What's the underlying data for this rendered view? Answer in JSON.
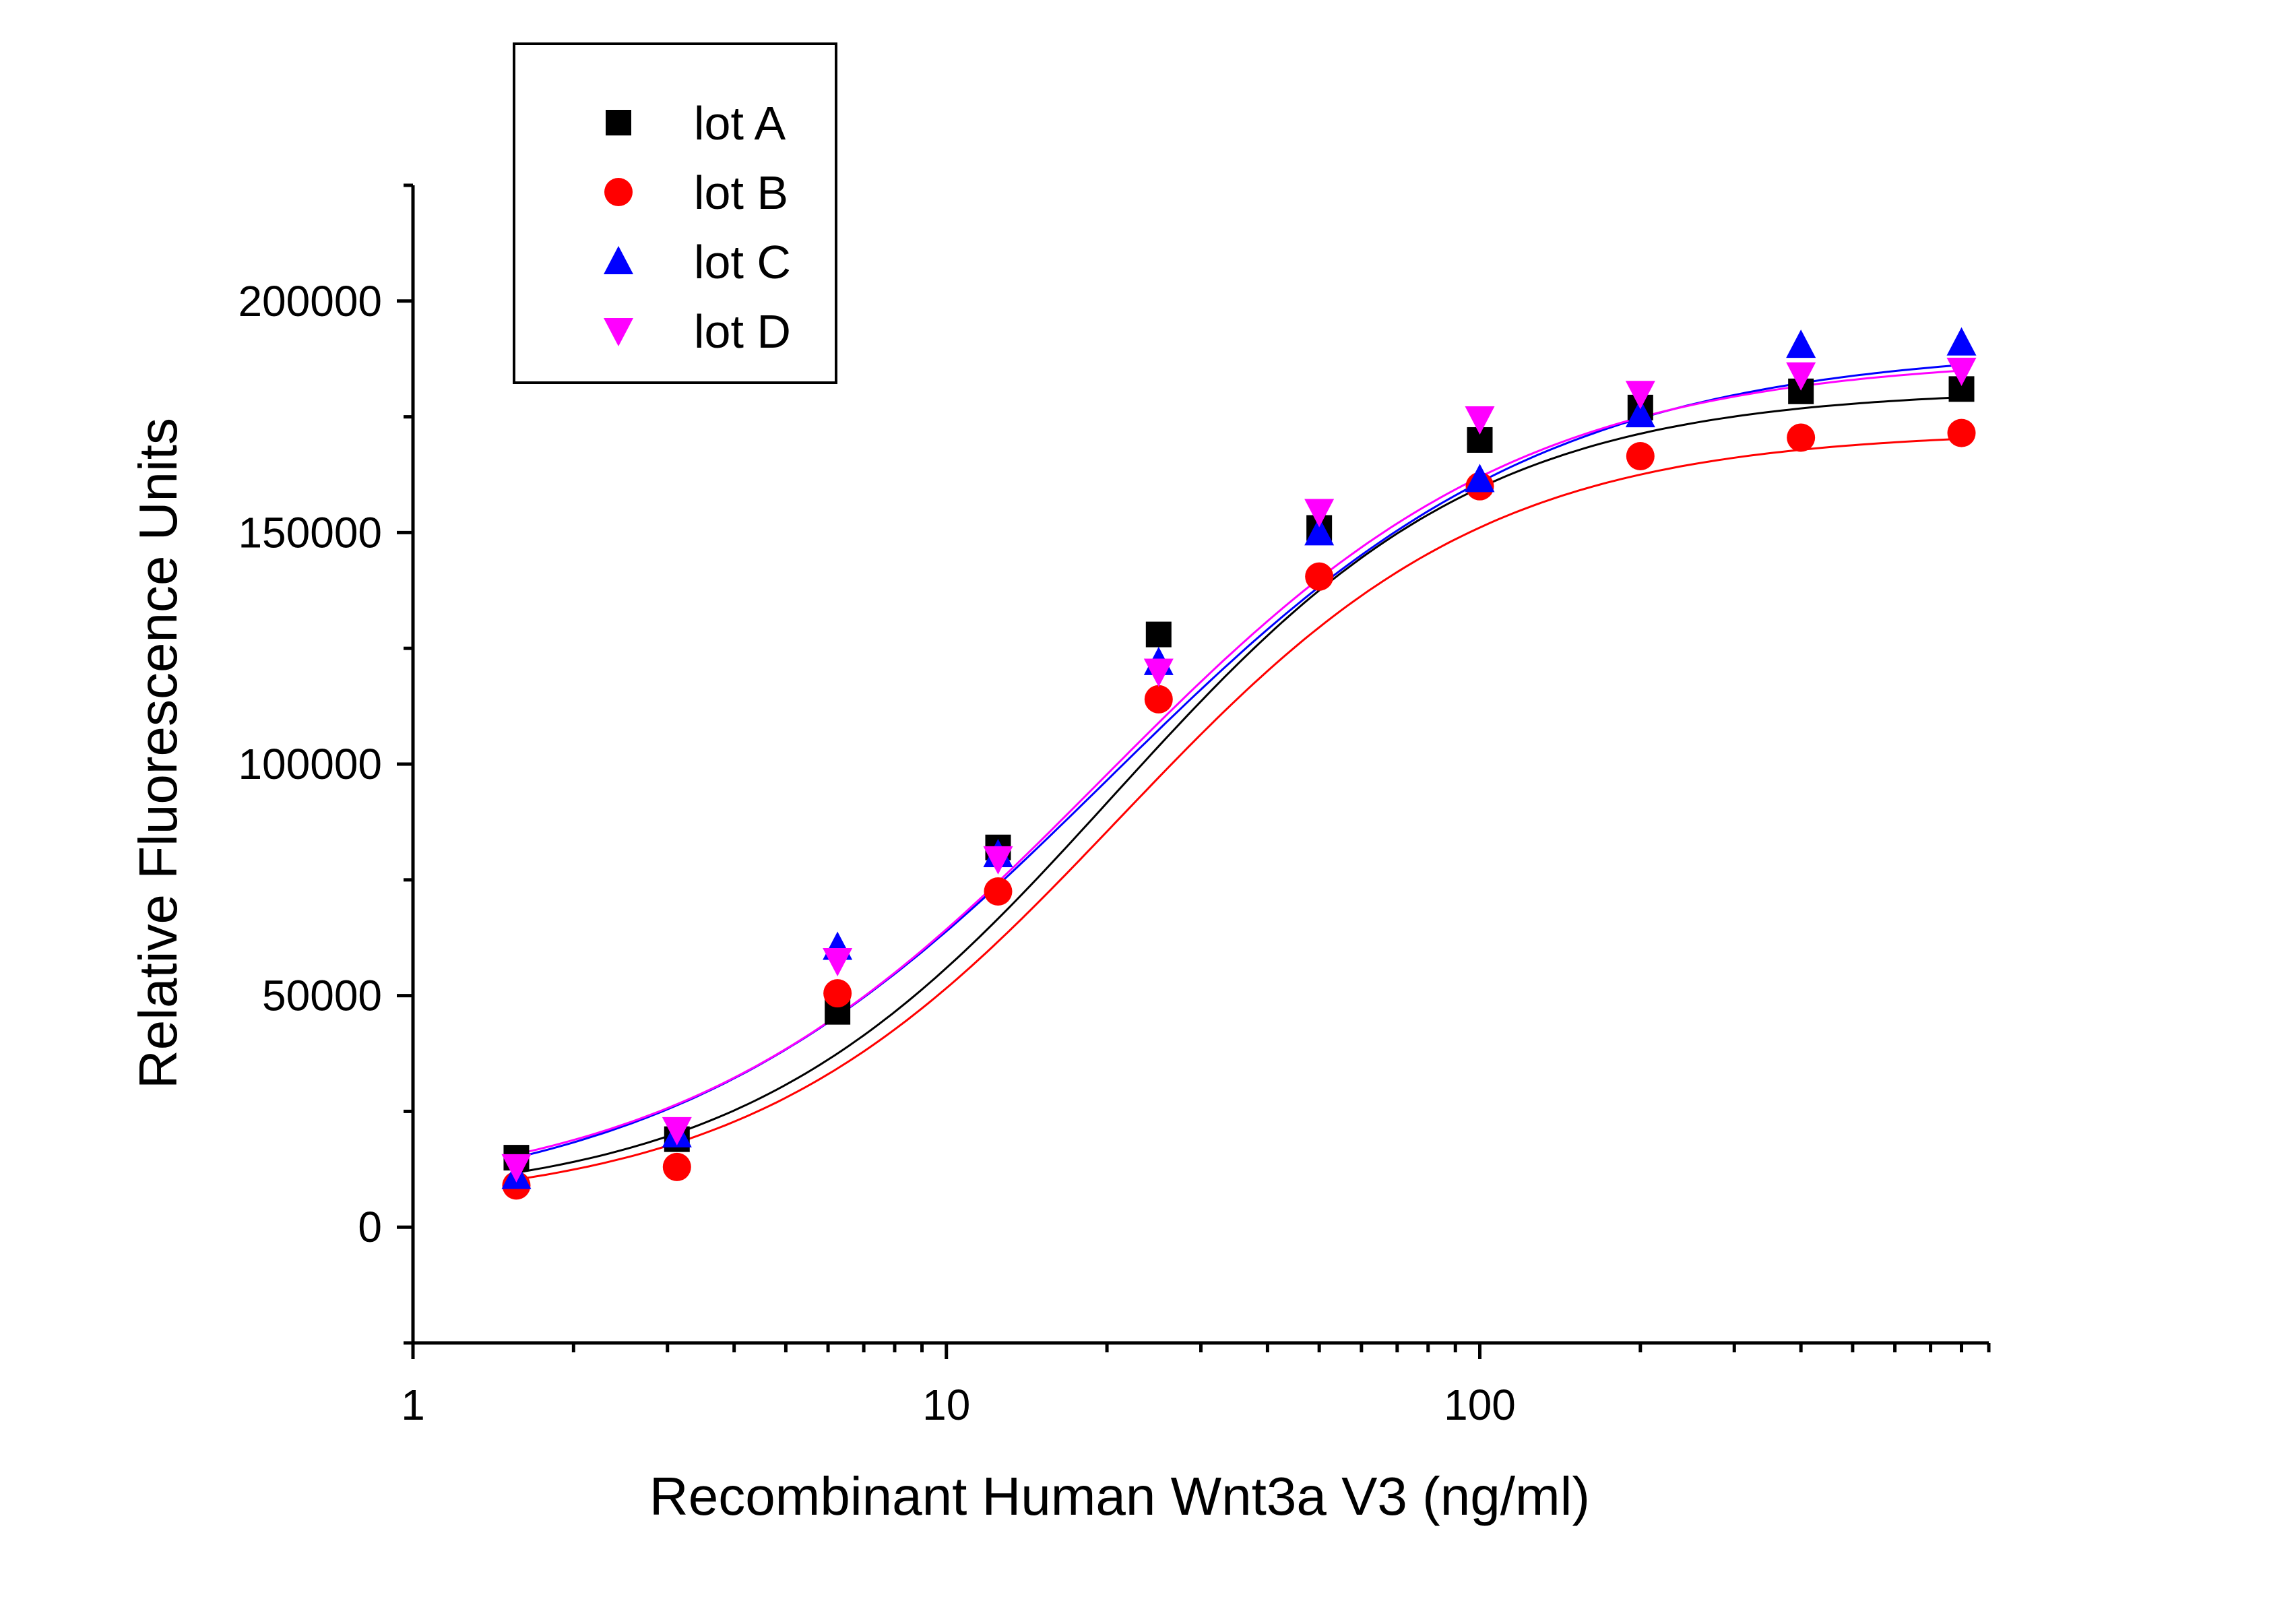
{
  "chart_data": {
    "type": "scatter",
    "title": "",
    "xlabel": "Recombinant Human Wnt3a V3 (ng/ml)",
    "ylabel": "Relative Fluorescence Units",
    "xscale": "log",
    "xlim": [
      1,
      900
    ],
    "ylim": [
      -25000,
      225000
    ],
    "xticks": [
      1,
      10,
      100
    ],
    "xtick_labels": [
      "1",
      "10",
      "100"
    ],
    "yticks": [
      0,
      50000,
      100000,
      150000,
      200000
    ],
    "ytick_labels": [
      "0",
      "50000",
      "100000",
      "150000",
      "200000"
    ],
    "grid": false,
    "legend_position": "top-left",
    "x": [
      1.5625,
      3.125,
      6.25,
      12.5,
      25,
      50,
      100,
      200,
      400,
      800
    ],
    "series": [
      {
        "name": "lot A",
        "color": "#000000",
        "marker": "square",
        "values": [
          15000,
          19000,
          46500,
          82000,
          128000,
          151000,
          170000,
          177000,
          180500,
          181000
        ],
        "fit": {
          "bottom": 5000,
          "top": 181000,
          "ec50": 20.5,
          "hill": 1.25
        }
      },
      {
        "name": "lot B",
        "color": "#ff0000",
        "marker": "circle",
        "values": [
          9000,
          13000,
          50500,
          72500,
          114000,
          140500,
          160000,
          166500,
          170500,
          171500
        ],
        "fit": {
          "bottom": 4000,
          "top": 172000,
          "ec50": 21.0,
          "hill": 1.25
        }
      },
      {
        "name": "lot C",
        "color": "#0000ff",
        "marker": "triangle-up",
        "values": [
          11000,
          20000,
          60500,
          80500,
          122000,
          150000,
          161500,
          175500,
          190500,
          191000
        ],
        "fit": {
          "bottom": 3000,
          "top": 190000,
          "ec50": 20.0,
          "hill": 1.05
        }
      },
      {
        "name": "lot D",
        "color": "#ff00ff",
        "marker": "triangle-down",
        "values": [
          13000,
          21000,
          57500,
          79500,
          120000,
          154500,
          174500,
          180000,
          184000,
          185000
        ],
        "fit": {
          "bottom": 5000,
          "top": 188000,
          "ec50": 19.5,
          "hill": 1.1
        }
      }
    ]
  }
}
